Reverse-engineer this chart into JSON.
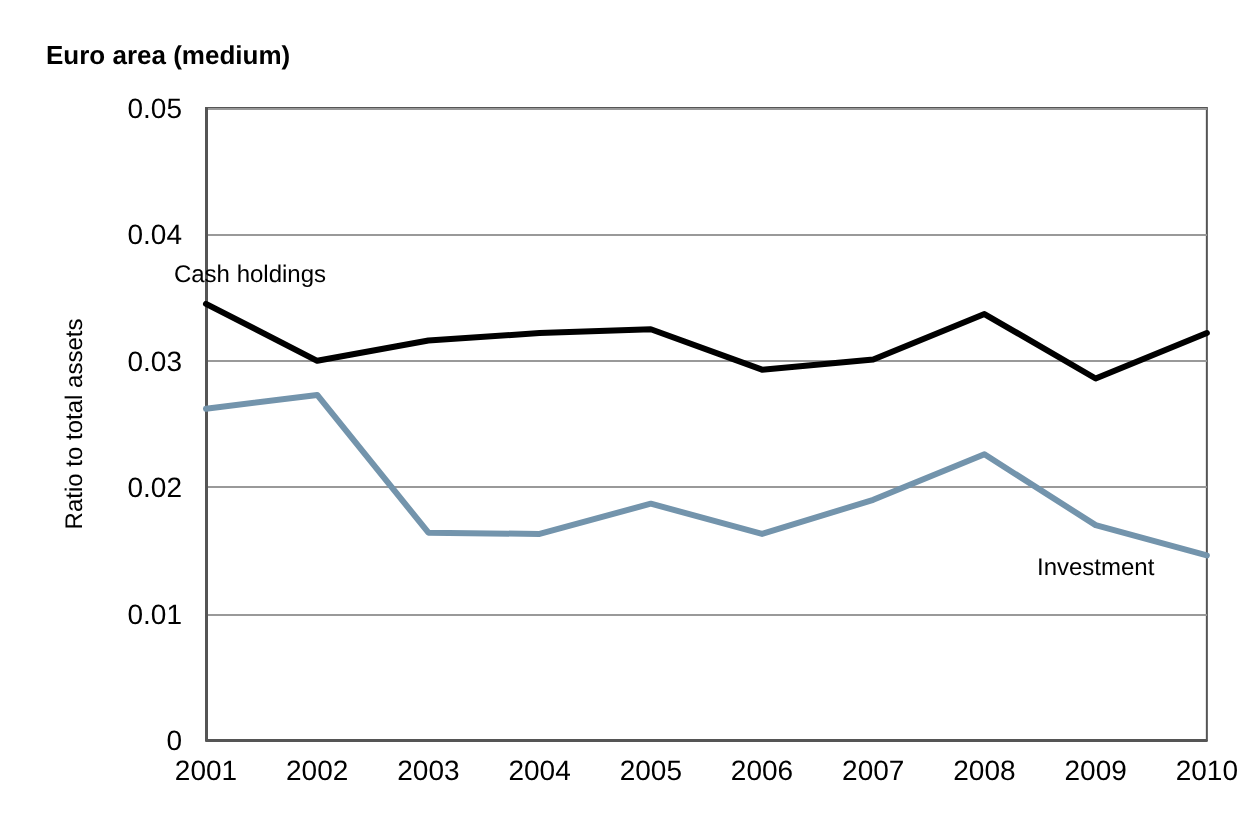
{
  "chart_data": {
    "type": "line",
    "title": "Euro area (medium)",
    "ylabel": "Ratio to total assets",
    "categories": [
      "2001",
      "2002",
      "2003",
      "2004",
      "2005",
      "2006",
      "2007",
      "2008",
      "2009",
      "2010"
    ],
    "series": [
      {
        "name": "Cash holdings",
        "color": "#000000",
        "values": [
          0.0345,
          0.03,
          0.0316,
          0.0322,
          0.0325,
          0.0293,
          0.0301,
          0.0337,
          0.0286,
          0.0322
        ]
      },
      {
        "name": "Investment",
        "color": "#7394ac",
        "values": [
          0.0262,
          0.0273,
          0.0164,
          0.0163,
          0.0187,
          0.0163,
          0.019,
          0.0226,
          0.017,
          0.0146
        ]
      }
    ],
    "ylim": [
      0,
      0.05
    ],
    "yticks": [
      0,
      0.01,
      0.02,
      0.03,
      0.04,
      0.05
    ],
    "grid": "y",
    "legend": false,
    "marker": "none",
    "line_style": "solid"
  }
}
